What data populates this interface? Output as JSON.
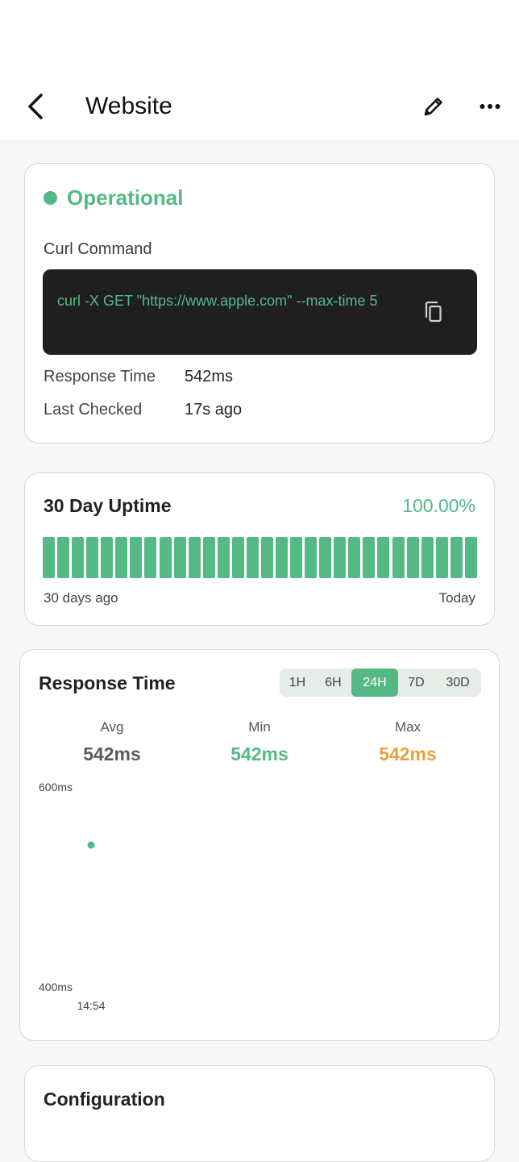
{
  "header": {
    "title": "Website"
  },
  "status": {
    "text": "Operational",
    "color": "#55b985",
    "curl_label": "Curl Command",
    "curl_command": "curl -X GET \"https://www.apple.com\" --max-time 5",
    "response_time_label": "Response Time",
    "response_time_value": "542ms",
    "last_checked_label": "Last Checked",
    "last_checked_value": "17s ago"
  },
  "uptime": {
    "title": "30 Day Uptime",
    "percent": "100.00%",
    "start_label": "30 days ago",
    "end_label": "Today",
    "days": [
      1,
      1,
      1,
      1,
      1,
      1,
      1,
      1,
      1,
      1,
      1,
      1,
      1,
      1,
      1,
      1,
      1,
      1,
      1,
      1,
      1,
      1,
      1,
      1,
      1,
      1,
      1,
      1,
      1,
      1
    ]
  },
  "response_time": {
    "title": "Response Time",
    "ranges": [
      "1H",
      "6H",
      "24H",
      "7D",
      "30D"
    ],
    "selected_range": "24H",
    "stats": {
      "avg_label": "Avg",
      "avg_value": "542ms",
      "min_label": "Min",
      "min_value": "542ms",
      "max_label": "Max",
      "max_value": "542ms"
    },
    "colors": {
      "avg": "#555f58",
      "min": "#55b985",
      "max": "#e8a33d"
    }
  },
  "chart_data": {
    "type": "scatter",
    "title": "",
    "xlabel": "",
    "ylabel": "",
    "x": [
      "14:54"
    ],
    "y": [
      542
    ],
    "ylim": [
      400,
      600
    ],
    "y_tick_labels": [
      "600ms",
      "400ms"
    ],
    "x_tick_labels": [
      "14:54"
    ],
    "grid": false,
    "legend": "none"
  },
  "configuration": {
    "title": "Configuration"
  }
}
